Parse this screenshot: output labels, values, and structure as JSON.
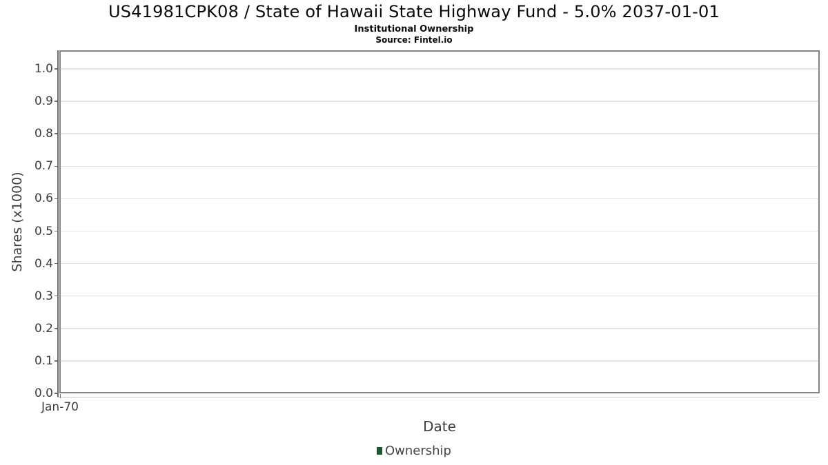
{
  "header": {
    "title": "US41981CPK08 / State of Hawaii State Highway Fund - 5.0% 2037-01-01",
    "subtitle": "Institutional Ownership",
    "source": "Source: Fintel.io"
  },
  "colors": {
    "background": "#ffffff",
    "plot_border": "#858585",
    "gridline": "#e4e4e4",
    "axis_line": "#6e6e6e",
    "x_axis_line": "#c9c9c9",
    "tick_text": "#3d3d3d",
    "legend_green": "#1e5431"
  },
  "chart_data": {
    "type": "line",
    "title": "US41981CPK08 / State of Hawaii State Highway Fund - 5.0% 2037-01-01",
    "subtitle": "Institutional Ownership",
    "source": "Source: Fintel.io",
    "xlabel": "Date",
    "ylabel": "Shares (x1000)",
    "xticks": [
      "Jan-70"
    ],
    "yticks": [
      {
        "value": 0.0,
        "label": "0.0"
      },
      {
        "value": 0.1,
        "label": "0.1"
      },
      {
        "value": 0.2,
        "label": "0.2"
      },
      {
        "value": 0.3,
        "label": "0.3"
      },
      {
        "value": 0.4,
        "label": "0.4"
      },
      {
        "value": 0.5,
        "label": "0.5"
      },
      {
        "value": 0.6,
        "label": "0.6"
      },
      {
        "value": 0.7,
        "label": "0.7"
      },
      {
        "value": 0.8,
        "label": "0.8"
      },
      {
        "value": 0.9,
        "label": "0.9"
      },
      {
        "value": 1.0,
        "label": "1.0"
      }
    ],
    "ylim": [
      0,
      1.055
    ],
    "grid": "horizontal-only",
    "legend": {
      "position": "bottom-center",
      "entries": [
        {
          "label": "Ownership",
          "color": "#1e5431"
        }
      ]
    },
    "series": [
      {
        "name": "Ownership",
        "color": "#1e5431",
        "points": []
      }
    ],
    "plot_is_empty": true
  }
}
